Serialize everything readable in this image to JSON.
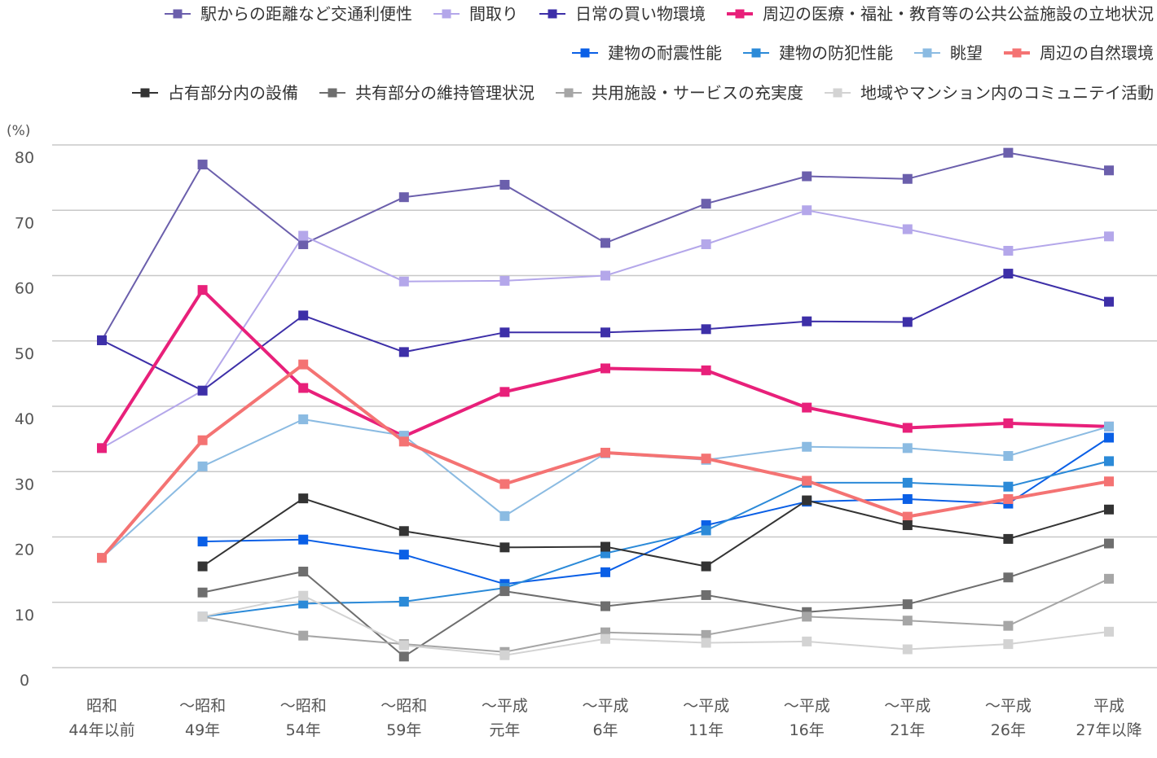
{
  "chart_data": {
    "type": "line",
    "unit_label": "(%)",
    "ylim": [
      0,
      80
    ],
    "y_ticks": [
      0,
      10,
      20,
      30,
      40,
      50,
      60,
      70,
      80
    ],
    "grid": true,
    "legend_position": "top",
    "categories": [
      [
        "昭和",
        "44年以前"
      ],
      [
        "～昭和",
        "49年"
      ],
      [
        "～昭和",
        "54年"
      ],
      [
        "～昭和",
        "59年"
      ],
      [
        "～平成",
        "元年"
      ],
      [
        "～平成",
        "6年"
      ],
      [
        "～平成",
        "11年"
      ],
      [
        "～平成",
        "16年"
      ],
      [
        "～平成",
        "21年"
      ],
      [
        "～平成",
        "26年"
      ],
      [
        "平成",
        "27年以降"
      ]
    ],
    "series": [
      {
        "name": "駅からの距離など交通利便性",
        "color": "#6b5fac",
        "width": 2,
        "values": [
          50.1,
          77.0,
          64.8,
          72.0,
          73.9,
          65.0,
          71.0,
          75.2,
          74.8,
          78.8,
          76.1
        ]
      },
      {
        "name": "間取り",
        "color": "#b4a7ea",
        "width": 2,
        "values": [
          33.6,
          42.4,
          66.1,
          59.1,
          59.2,
          60.0,
          64.8,
          70.0,
          67.1,
          63.8,
          66.0
        ]
      },
      {
        "name": "日常の買い物環境",
        "color": "#3d2fa8",
        "width": 2,
        "values": [
          50.1,
          42.4,
          53.9,
          48.3,
          51.3,
          51.3,
          51.8,
          53.0,
          52.9,
          60.3,
          56.0
        ]
      },
      {
        "name": "周辺の医療・福祉・教育等の公共公益施設の立地状況",
        "color": "#e8207a",
        "width": 4,
        "values": [
          33.6,
          57.8,
          42.8,
          35.4,
          42.2,
          45.8,
          45.5,
          39.8,
          36.7,
          37.4,
          36.9
        ]
      },
      {
        "name": "建物の耐震性能",
        "color": "#0a5fe6",
        "width": 2,
        "values": [
          null,
          19.3,
          19.6,
          17.3,
          12.8,
          14.6,
          21.8,
          25.4,
          25.8,
          25.1,
          35.2
        ]
      },
      {
        "name": "建物の防犯性能",
        "color": "#2b8ad8",
        "width": 2,
        "values": [
          null,
          7.8,
          9.8,
          10.1,
          12.2,
          17.5,
          21.0,
          28.3,
          28.3,
          27.7,
          31.6
        ]
      },
      {
        "name": "眺望",
        "color": "#8bbbe2",
        "width": 2,
        "values": [
          16.8,
          30.8,
          38.0,
          35.5,
          23.2,
          32.8,
          31.8,
          33.8,
          33.6,
          32.4,
          36.9
        ]
      },
      {
        "name": "周辺の自然環境",
        "color": "#f47373",
        "width": 4,
        "values": [
          16.8,
          34.8,
          46.4,
          34.6,
          28.1,
          32.9,
          32.0,
          28.6,
          23.1,
          25.8,
          28.5
        ]
      },
      {
        "name": "占有部分内の設備",
        "color": "#333333",
        "width": 2,
        "values": [
          null,
          15.5,
          25.9,
          20.9,
          18.4,
          18.5,
          15.5,
          25.6,
          21.8,
          19.7,
          24.2
        ]
      },
      {
        "name": "共有部分の維持管理状況",
        "color": "#6e6e6e",
        "width": 2,
        "values": [
          null,
          11.5,
          14.7,
          1.7,
          11.7,
          9.4,
          11.1,
          8.5,
          9.7,
          13.8,
          19.0
        ]
      },
      {
        "name": "共用施設・サービスの充実度",
        "color": "#a6a6a6",
        "width": 2,
        "values": [
          null,
          7.8,
          4.9,
          3.6,
          2.4,
          5.4,
          5.0,
          7.8,
          7.2,
          6.4,
          13.6
        ]
      },
      {
        "name": "地域やマンション内のコミュニテイ活動",
        "color": "#d3d3d3",
        "width": 2,
        "values": [
          null,
          7.8,
          11.0,
          3.4,
          1.9,
          4.4,
          3.8,
          4.0,
          2.8,
          3.6,
          5.5
        ]
      }
    ]
  }
}
